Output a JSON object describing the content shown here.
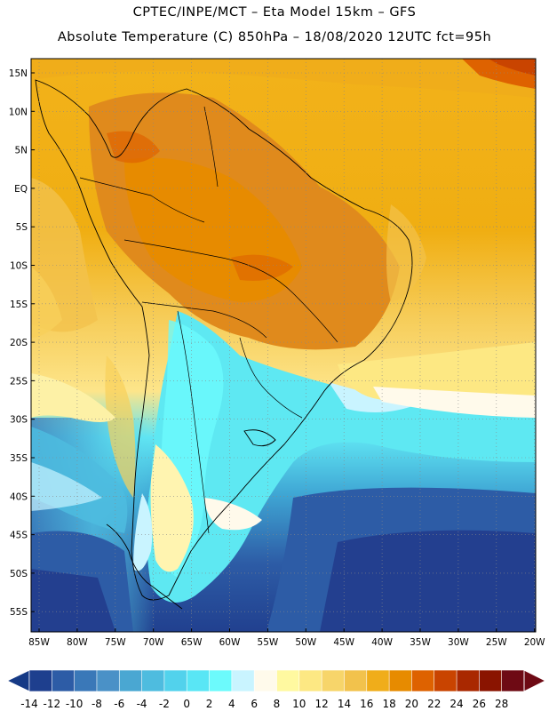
{
  "title_line1": "CPTEC/INPE/MCT –  Eta Model 15km – GFS",
  "title_line2": "Absolute Temperature (C) 850hPa – 18/08/2020 12UTC fct=95h",
  "lat_labels": [
    "15N",
    "10N",
    "5N",
    "EQ",
    "5S",
    "10S",
    "15S",
    "20S",
    "25S",
    "30S",
    "35S",
    "40S",
    "45S",
    "50S",
    "55S"
  ],
  "lon_labels": [
    "85W",
    "80W",
    "75W",
    "70W",
    "65W",
    "60W",
    "55W",
    "50W",
    "45W",
    "40W",
    "35W",
    "30W",
    "25W",
    "20W"
  ],
  "colorbar": {
    "colors": [
      "#1e3f8e",
      "#2d5ca6",
      "#3a78b8",
      "#4a91c7",
      "#4aa7d2",
      "#4ebcdf",
      "#52d2ec",
      "#59e6f5",
      "#6cfafc",
      "#c9f4ff",
      "#fffaeb",
      "#fff9a0",
      "#fde883",
      "#f7d56a",
      "#f2c24c",
      "#f0ad1a",
      "#e78b00",
      "#de6200",
      "#c94400",
      "#a92800",
      "#8a1400",
      "#6e0a14"
    ],
    "labels": [
      "-14",
      "-12",
      "-10",
      "-8",
      "-6",
      "-4",
      "-2",
      "0",
      "2",
      "4",
      "6",
      "8",
      "10",
      "12",
      "14",
      "16",
      "18",
      "20",
      "22",
      "24",
      "26",
      "28"
    ]
  },
  "colors": {
    "hot": "#e08a1c",
    "warm": "#f0ab14",
    "mild": "#f8d05a",
    "pale": "#fdf1a6",
    "cyan": "#5ee8f2",
    "blue": "#3f86c2",
    "navy": "#233f8f"
  }
}
